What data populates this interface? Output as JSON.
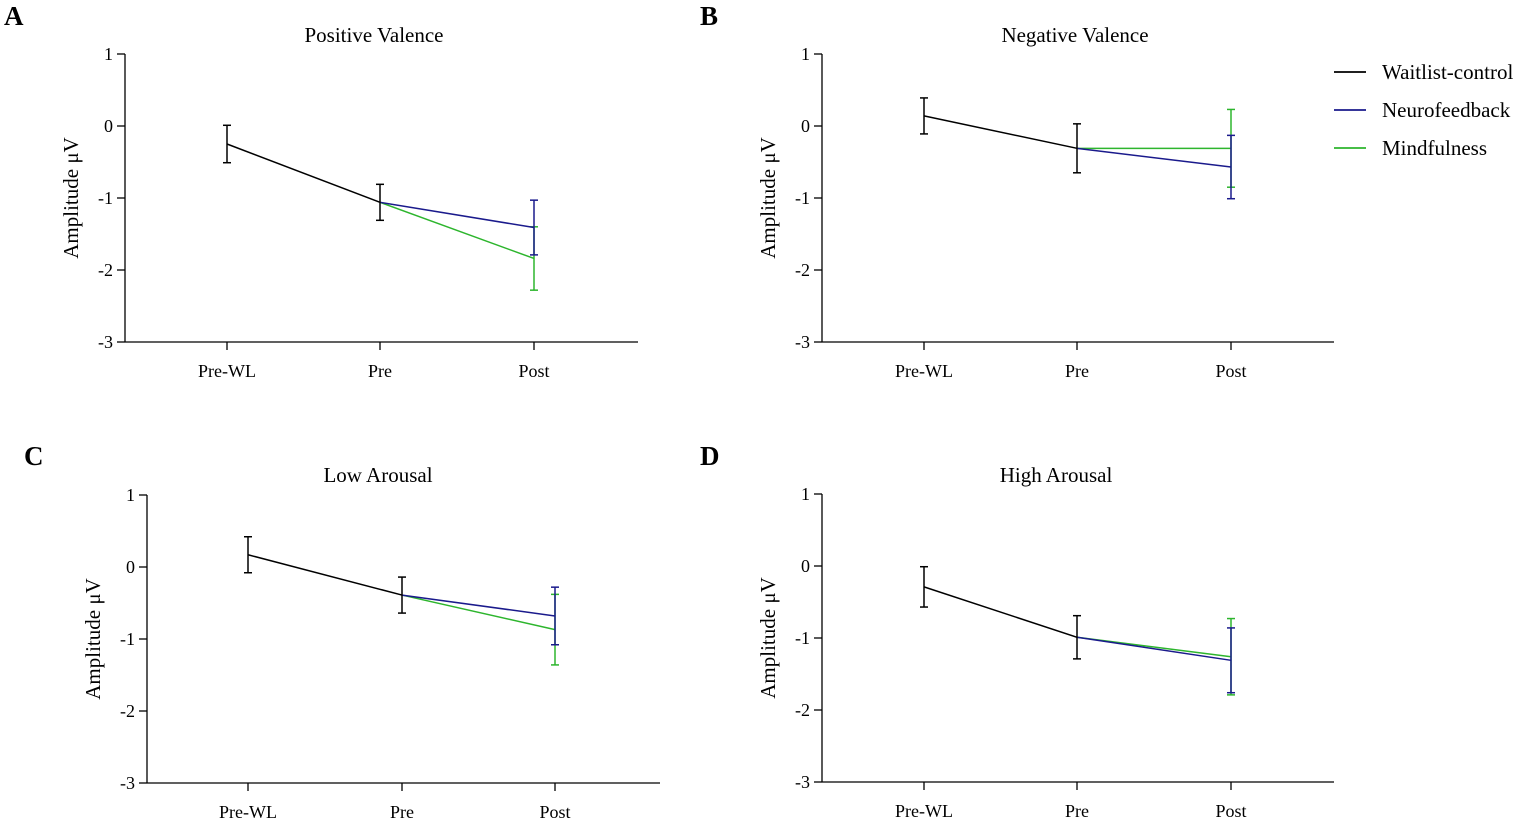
{
  "chart_data": [
    {
      "type": "line",
      "panel": "A",
      "title": "Positive Valence",
      "xlabel": "",
      "ylabel": "Amplitude μV",
      "ylim": [
        -3,
        1
      ],
      "yticks": [
        "1",
        "0",
        "-1",
        "-2",
        "-3"
      ],
      "categories": [
        "Pre-WL",
        "Pre",
        "Post"
      ],
      "series": [
        {
          "name": "Waitlist-control",
          "color": "#000000",
          "points": [
            {
              "x": 0,
              "y": -0.25,
              "err": 0.26
            },
            {
              "x": 1,
              "y": -1.06,
              "err": 0.25
            }
          ]
        },
        {
          "name": "Neurofeedback",
          "color": "#1a1a8c",
          "points": [
            {
              "x": 1,
              "y": -1.06
            },
            {
              "x": 2,
              "y": -1.41,
              "err": 0.38
            }
          ]
        },
        {
          "name": "Mindfulness",
          "color": "#2db52d",
          "points": [
            {
              "x": 1,
              "y": -1.06
            },
            {
              "x": 2,
              "y": -1.84,
              "err": 0.44
            }
          ]
        }
      ]
    },
    {
      "type": "line",
      "panel": "B",
      "title": "Negative Valence",
      "xlabel": "",
      "ylabel": "Amplitude μV",
      "ylim": [
        -3,
        1
      ],
      "yticks": [
        "1",
        "0",
        "-1",
        "-2",
        "-3"
      ],
      "categories": [
        "Pre-WL",
        "Pre",
        "Post"
      ],
      "series": [
        {
          "name": "Waitlist-control",
          "color": "#000000",
          "points": [
            {
              "x": 0,
              "y": 0.14,
              "err": 0.25
            },
            {
              "x": 1,
              "y": -0.31,
              "err": 0.34
            }
          ]
        },
        {
          "name": "Neurofeedback",
          "color": "#1a1a8c",
          "points": [
            {
              "x": 1,
              "y": -0.31
            },
            {
              "x": 2,
              "y": -0.57,
              "err": 0.44
            }
          ]
        },
        {
          "name": "Mindfulness",
          "color": "#2db52d",
          "points": [
            {
              "x": 1,
              "y": -0.31
            },
            {
              "x": 2,
              "y": -0.31,
              "err": 0.54
            }
          ]
        }
      ]
    },
    {
      "type": "line",
      "panel": "C",
      "title": "Low Arousal",
      "xlabel": "",
      "ylabel": "Amplitude μV",
      "ylim": [
        -3,
        1
      ],
      "yticks": [
        "1",
        "0",
        "-1",
        "-2",
        "-3"
      ],
      "categories": [
        "Pre-WL",
        "Pre",
        "Post"
      ],
      "series": [
        {
          "name": "Waitlist-control",
          "color": "#000000",
          "points": [
            {
              "x": 0,
              "y": 0.17,
              "err": 0.25
            },
            {
              "x": 1,
              "y": -0.39,
              "err": 0.25
            }
          ]
        },
        {
          "name": "Neurofeedback",
          "color": "#1a1a8c",
          "points": [
            {
              "x": 1,
              "y": -0.39
            },
            {
              "x": 2,
              "y": -0.68,
              "err": 0.4
            }
          ]
        },
        {
          "name": "Mindfulness",
          "color": "#2db52d",
          "points": [
            {
              "x": 1,
              "y": -0.39
            },
            {
              "x": 2,
              "y": -0.87,
              "err": 0.49
            }
          ]
        }
      ]
    },
    {
      "type": "line",
      "panel": "D",
      "title": "High Arousal",
      "xlabel": "",
      "ylabel": "Amplitude μV",
      "ylim": [
        -3,
        1
      ],
      "yticks": [
        "1",
        "0",
        "-1",
        "-2",
        "-3"
      ],
      "categories": [
        "Pre-WL",
        "Pre",
        "Post"
      ],
      "series": [
        {
          "name": "Waitlist-control",
          "color": "#000000",
          "points": [
            {
              "x": 0,
              "y": -0.29,
              "err": 0.28
            },
            {
              "x": 1,
              "y": -0.99,
              "err": 0.3
            }
          ]
        },
        {
          "name": "Neurofeedback",
          "color": "#1a1a8c",
          "points": [
            {
              "x": 1,
              "y": -0.99
            },
            {
              "x": 2,
              "y": -1.31,
              "err": 0.45
            }
          ]
        },
        {
          "name": "Mindfulness",
          "color": "#2db52d",
          "points": [
            {
              "x": 1,
              "y": -0.99
            },
            {
              "x": 2,
              "y": -1.26,
              "err": 0.53
            }
          ]
        }
      ]
    }
  ],
  "legend": {
    "items": [
      {
        "label": "Waitlist-control",
        "color": "#000000"
      },
      {
        "label": "Neurofeedback",
        "color": "#1a1a8c"
      },
      {
        "label": "Mindfulness",
        "color": "#2db52d"
      }
    ]
  }
}
